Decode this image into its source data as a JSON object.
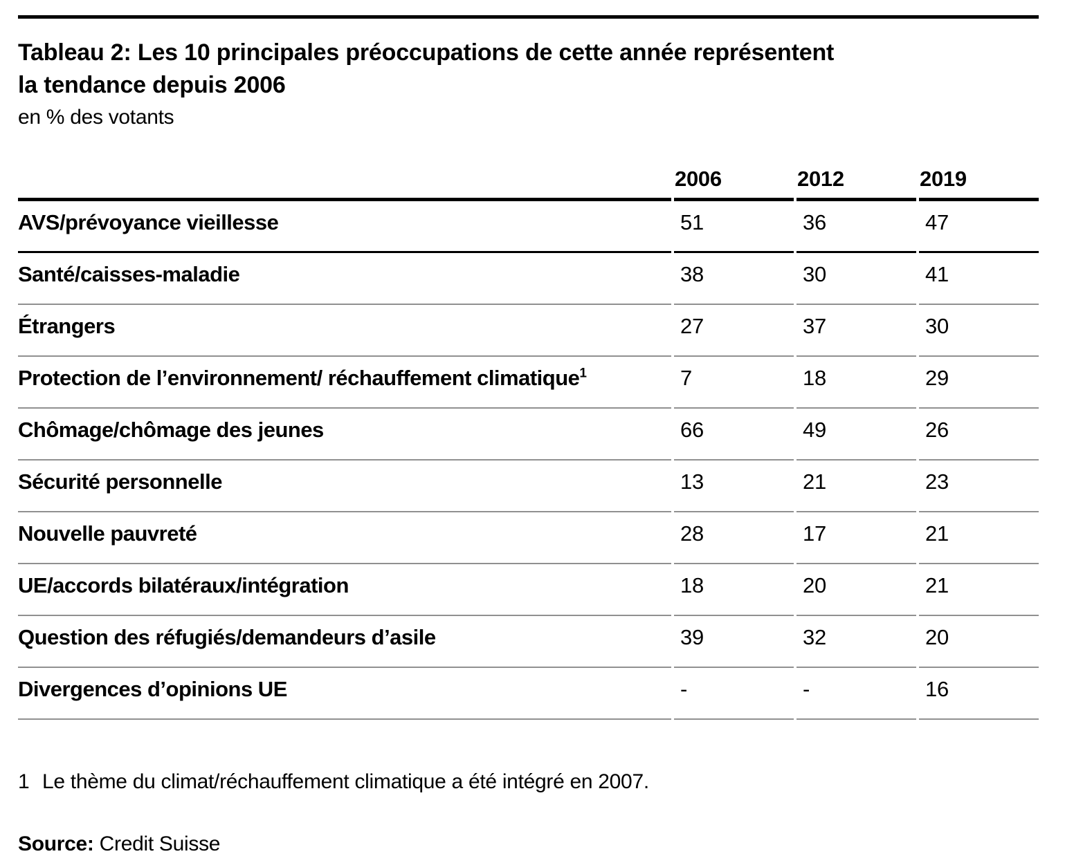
{
  "header": {
    "title_line1": "Tableau 2: Les 10 principales préoccupations de cette année représentent",
    "title_line2": "la tendance depuis 2006",
    "subtitle": "en % des votants"
  },
  "table": {
    "columns": [
      "2006",
      "2012",
      "2019"
    ],
    "rows": [
      {
        "label": "AVS/prévoyance vieillesse",
        "values": [
          "51",
          "36",
          "47"
        ]
      },
      {
        "label": "Santé/caisses-maladie",
        "values": [
          "38",
          "30",
          "41"
        ]
      },
      {
        "label": "Étrangers",
        "values": [
          "27",
          "37",
          "30"
        ]
      },
      {
        "label": "Protection de l’environnement/ réchauffement climatique",
        "footnote_ref": "1",
        "values": [
          "7",
          "18",
          "29"
        ]
      },
      {
        "label": "Chômage/chômage des jeunes",
        "values": [
          "66",
          "49",
          "26"
        ]
      },
      {
        "label": "Sécurité personnelle",
        "values": [
          "13",
          "21",
          "23"
        ]
      },
      {
        "label": "Nouvelle pauvreté",
        "values": [
          "28",
          "17",
          "21"
        ]
      },
      {
        "label": "UE/accords bilatéraux/intégration",
        "values": [
          "18",
          "20",
          "21"
        ]
      },
      {
        "label": "Question des réfugiés/demandeurs d’asile",
        "values": [
          "39",
          "32",
          "20"
        ]
      },
      {
        "label": "Divergences d’opinions UE",
        "values": [
          "-",
          "-",
          "16"
        ]
      }
    ]
  },
  "footnote": {
    "marker": "1",
    "text": "Le thème du climat/réchauffement climatique a été intégré en 2007."
  },
  "source": {
    "label": "Source:",
    "text": "Credit Suisse"
  },
  "colors": {
    "text": "#000000",
    "rule_black": "#000000",
    "rule_gray": "#909090",
    "background": "#ffffff"
  },
  "chart_data": {
    "type": "table",
    "title": "Tableau 2: Les 10 principales préoccupations de cette année représentent la tendance depuis 2006",
    "subtitle": "en % des votants",
    "unit": "% des votants",
    "categories": [
      "AVS/prévoyance vieillesse",
      "Santé/caisses-maladie",
      "Étrangers",
      "Protection de l’environnement/ réchauffement climatique",
      "Chômage/chômage des jeunes",
      "Sécurité personnelle",
      "Nouvelle pauvreté",
      "UE/accords bilatéraux/intégration",
      "Question des réfugiés/demandeurs d’asile",
      "Divergences d’opinions UE"
    ],
    "series": [
      {
        "name": "2006",
        "values": [
          51,
          38,
          27,
          7,
          66,
          13,
          28,
          18,
          39,
          null
        ]
      },
      {
        "name": "2012",
        "values": [
          36,
          30,
          37,
          18,
          49,
          21,
          17,
          20,
          32,
          null
        ]
      },
      {
        "name": "2019",
        "values": [
          47,
          41,
          30,
          29,
          26,
          23,
          21,
          21,
          20,
          16
        ]
      }
    ],
    "missing_value_display": "-",
    "footnote": "1 Le thème du climat/réchauffement climatique a été intégré en 2007.",
    "source": "Credit Suisse"
  }
}
